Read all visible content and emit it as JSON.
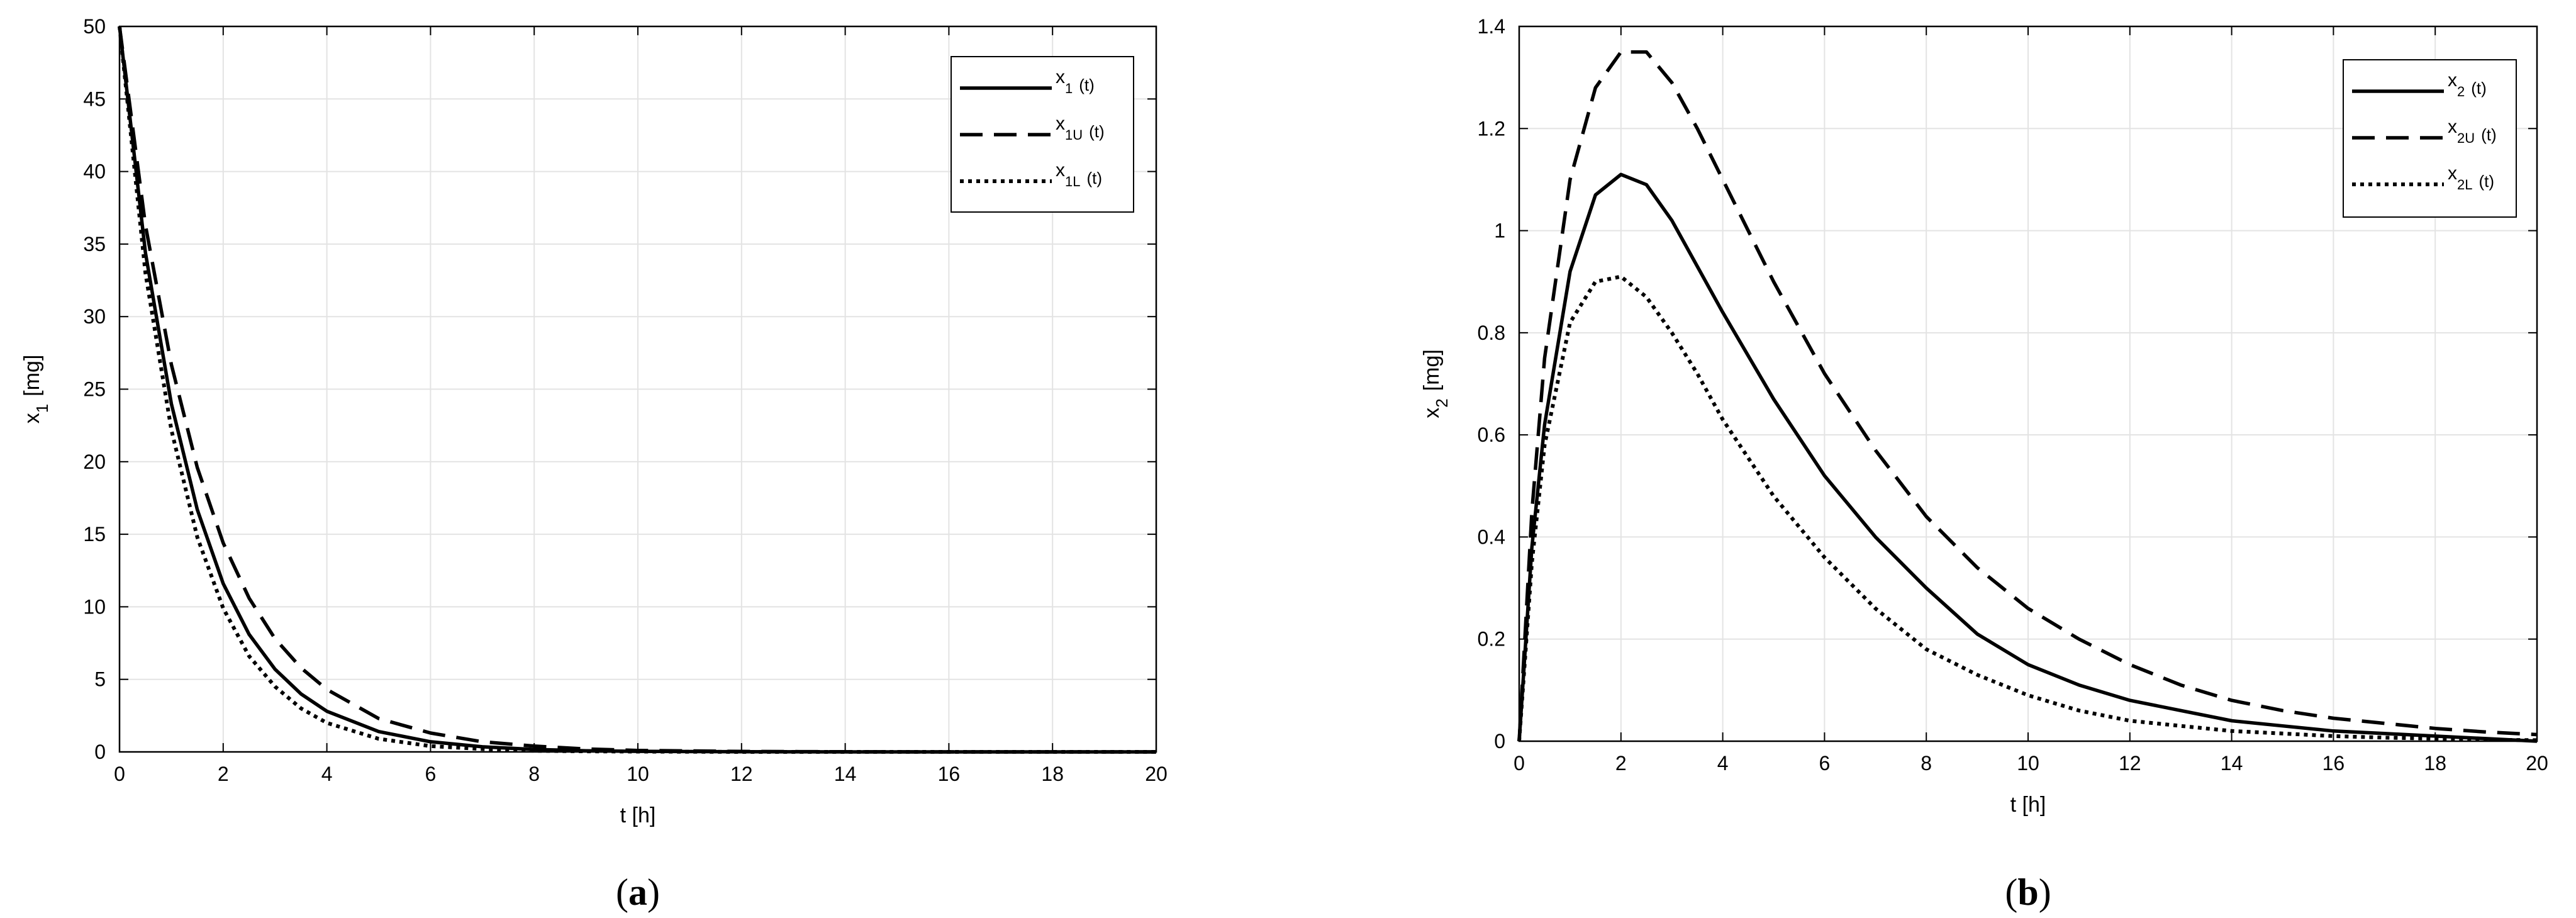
{
  "chart_data": [
    {
      "type": "line",
      "panel_label": {
        "open": "(",
        "letter": "a",
        "close": ")"
      },
      "xlabel": "t [h]",
      "ylabel": {
        "main": "x",
        "sub": "1",
        "unit": "[mg]"
      },
      "xlim": [
        0,
        20
      ],
      "ylim": [
        0,
        50
      ],
      "xticks": [
        "0",
        "2",
        "4",
        "6",
        "8",
        "10",
        "12",
        "14",
        "16",
        "18",
        "20"
      ],
      "yticks": [
        "0",
        "5",
        "10",
        "15",
        "20",
        "25",
        "30",
        "35",
        "40",
        "45",
        "50"
      ],
      "grid": true,
      "legend_position": "top-right",
      "x": [
        0,
        0.5,
        1,
        1.5,
        2,
        2.5,
        3,
        3.5,
        4,
        5,
        6,
        7,
        8,
        9,
        10,
        12,
        14,
        16,
        18,
        20
      ],
      "series": [
        {
          "name": {
            "main": "x",
            "sub": "1",
            "tail": "(t)"
          },
          "style": "solid",
          "values": [
            50,
            34.4,
            24.0,
            16.7,
            11.6,
            8.1,
            5.7,
            4.0,
            2.8,
            1.4,
            0.7,
            0.35,
            0.17,
            0.08,
            0.04,
            0.01,
            0,
            0,
            0,
            0
          ]
        },
        {
          "name": {
            "main": "x",
            "sub": "1U",
            "tail": "(t)"
          },
          "style": "dashed",
          "values": [
            50,
            36.3,
            26.7,
            19.6,
            14.4,
            10.6,
            7.8,
            5.8,
            4.3,
            2.3,
            1.3,
            0.7,
            0.4,
            0.2,
            0.1,
            0.03,
            0.01,
            0,
            0,
            0
          ]
        },
        {
          "name": {
            "main": "x",
            "sub": "1L",
            "tail": "(t)"
          },
          "style": "dotted",
          "values": [
            50,
            33.0,
            22.2,
            14.8,
            9.9,
            6.6,
            4.5,
            3.0,
            2.0,
            0.9,
            0.4,
            0.2,
            0.08,
            0.04,
            0.02,
            0,
            0,
            0,
            0,
            0
          ]
        }
      ]
    },
    {
      "type": "line",
      "panel_label": {
        "open": "(",
        "letter": "b",
        "close": ")"
      },
      "xlabel": "t [h]",
      "ylabel": {
        "main": "x",
        "sub": "2",
        "unit": "[mg]"
      },
      "xlim": [
        0,
        20
      ],
      "ylim": [
        0,
        1.4
      ],
      "xticks": [
        "0",
        "2",
        "4",
        "6",
        "8",
        "10",
        "12",
        "14",
        "16",
        "18",
        "20"
      ],
      "yticks": [
        "0",
        "0.2",
        "0.4",
        "0.6",
        "0.8",
        "1",
        "1.2",
        "1.4"
      ],
      "grid": true,
      "legend_position": "top-right",
      "x": [
        0,
        0.25,
        0.5,
        1,
        1.5,
        2,
        2.5,
        3,
        3.5,
        4,
        5,
        6,
        7,
        8,
        9,
        10,
        11,
        12,
        13,
        14,
        15,
        16,
        17,
        18,
        19,
        20
      ],
      "series": [
        {
          "name": {
            "main": "x",
            "sub": "2",
            "tail": "(t)"
          },
          "style": "solid",
          "values": [
            0,
            0.38,
            0.62,
            0.92,
            1.07,
            1.11,
            1.09,
            1.02,
            0.93,
            0.84,
            0.67,
            0.52,
            0.4,
            0.3,
            0.21,
            0.15,
            0.11,
            0.08,
            0.06,
            0.04,
            0.03,
            0.02,
            0.015,
            0.01,
            0.005,
            0.0
          ]
        },
        {
          "name": {
            "main": "x",
            "sub": "2U",
            "tail": "(t)"
          },
          "style": "dashed",
          "values": [
            0,
            0.45,
            0.75,
            1.1,
            1.28,
            1.35,
            1.35,
            1.29,
            1.2,
            1.1,
            0.9,
            0.72,
            0.57,
            0.44,
            0.34,
            0.26,
            0.2,
            0.15,
            0.11,
            0.08,
            0.06,
            0.045,
            0.035,
            0.025,
            0.018,
            0.013
          ]
        },
        {
          "name": {
            "main": "x",
            "sub": "2L",
            "tail": "(t)"
          },
          "style": "dotted",
          "values": [
            0,
            0.35,
            0.58,
            0.82,
            0.9,
            0.91,
            0.87,
            0.8,
            0.72,
            0.63,
            0.48,
            0.36,
            0.26,
            0.18,
            0.13,
            0.09,
            0.06,
            0.04,
            0.03,
            0.02,
            0.015,
            0.01,
            0.007,
            0.005,
            0.003,
            0.002
          ]
        }
      ]
    }
  ]
}
